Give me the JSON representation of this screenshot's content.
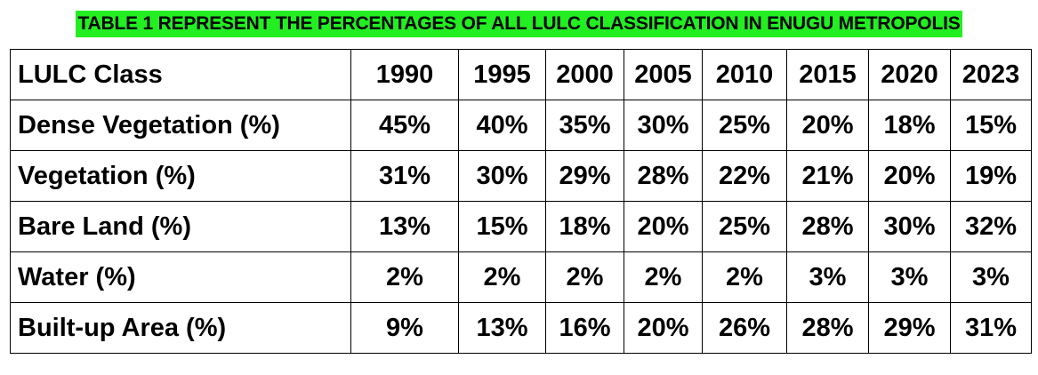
{
  "caption": "TABLE 1 REPRESENT THE PERCENTAGES OF ALL LULC CLASSIFICATION IN ENUGU METROPOLIS",
  "caption_color": "#22ee22",
  "table": {
    "columns": [
      "LULC Class",
      "1990",
      "1995",
      "2000",
      "2005",
      "2010",
      "2015",
      "2020",
      "2023"
    ],
    "rows": [
      [
        "Dense Vegetation (%)",
        "45%",
        "40%",
        "35%",
        "30%",
        "25%",
        "20%",
        "18%",
        "15%"
      ],
      [
        "Vegetation (%)",
        "31%",
        "30%",
        "29%",
        "28%",
        "22%",
        "21%",
        "20%",
        "19%"
      ],
      [
        "Bare Land (%)",
        "13%",
        "15%",
        "18%",
        "20%",
        "25%",
        "28%",
        "30%",
        "32%"
      ],
      [
        "Water (%)",
        "2%",
        "2%",
        "2%",
        "2%",
        "2%",
        "3%",
        "3%",
        "3%"
      ],
      [
        "Built-up Area (%)",
        "9%",
        "13%",
        "16%",
        "20%",
        "26%",
        "28%",
        "29%",
        "31%"
      ]
    ]
  }
}
